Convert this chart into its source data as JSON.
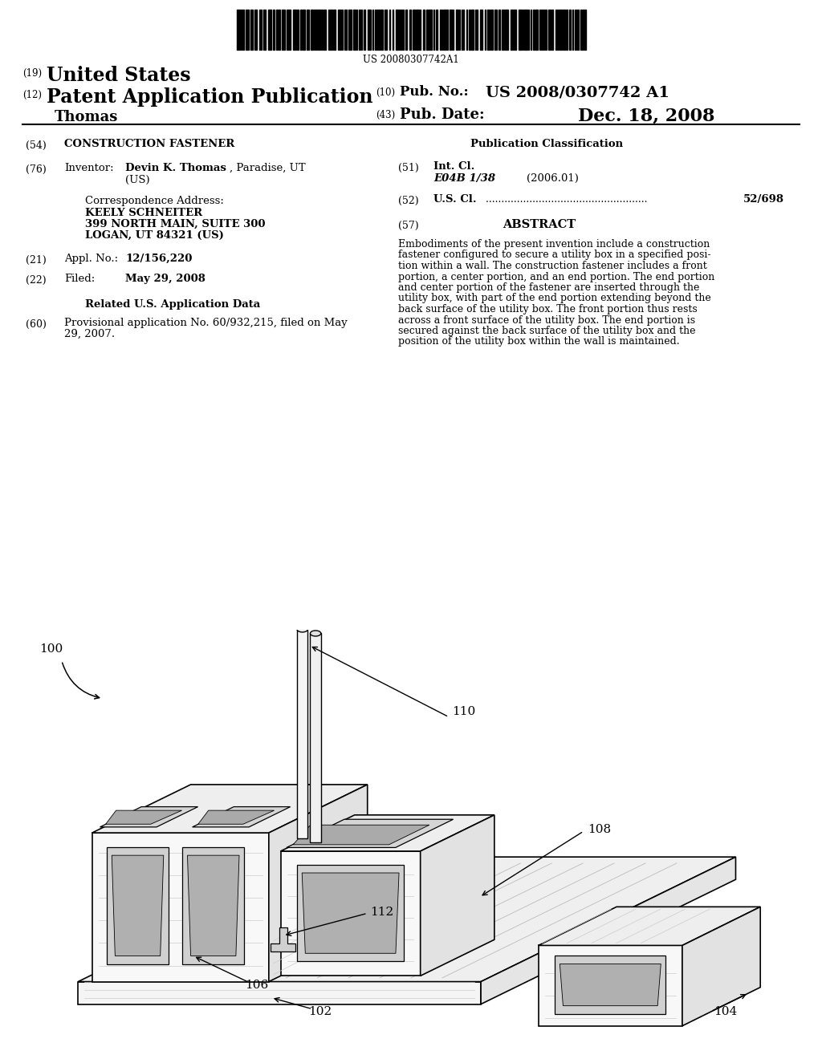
{
  "background_color": "#ffffff",
  "barcode_text": "US 20080307742A1",
  "header": {
    "number19": "(19)",
    "us_label": "United States",
    "number12": "(12)",
    "patent_label": "Patent Application Publication",
    "inventor_name": "Thomas",
    "number10": "(10)",
    "pub_no_label": "Pub. No.:",
    "pub_no_value": "US 2008/0307742 A1",
    "number43": "(43)",
    "pub_date_label": "Pub. Date:",
    "pub_date_value": "Dec. 18, 2008"
  },
  "left_col": {
    "item54_label": "CONSTRUCTION FASTENER",
    "inventor_name_bold": "Devin K. Thomas",
    "inventor_name_rest": ", Paradise, UT",
    "inventor_us": "(US)",
    "corr_label": "Correspondence Address:",
    "corr_line1": "KEELY SCHNEITER",
    "corr_line2": "399 NORTH MAIN, SUITE 300",
    "corr_line3": "LOGAN, UT 84321 (US)",
    "appl_no": "12/156,220",
    "filed": "May 29, 2008",
    "related_header": "Related U.S. Application Data",
    "prov_line1": "Provisional application No. 60/932,215, filed on May",
    "prov_line2": "29, 2007."
  },
  "right_col": {
    "pub_class_header": "Publication Classification",
    "int_cl_code": "E04B 1/38",
    "int_cl_year": "(2006.01)",
    "us_cl_value": "52/698",
    "abstract_header": "ABSTRACT",
    "abstract_lines": [
      "Embodiments of the present invention include a construction",
      "fastener configured to secure a utility box in a specified posi-",
      "tion within a wall. The construction fastener includes a front",
      "portion, a center portion, and an end portion. The end portion",
      "and center portion of the fastener are inserted through the",
      "utility box, with part of the end portion extending beyond the",
      "back surface of the utility box. The front portion thus rests",
      "across a front surface of the utility box. The end portion is",
      "secured against the back surface of the utility box and the",
      "position of the utility box within the wall is maintained."
    ]
  }
}
